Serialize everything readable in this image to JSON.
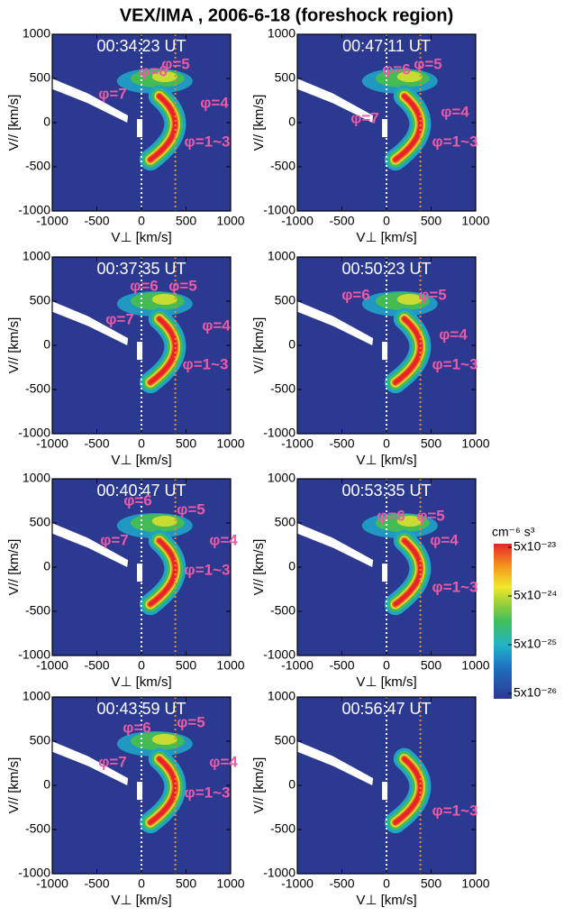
{
  "title": "VEX/IMA ,  2006-6-18 (foreshock region)",
  "chart_data": [
    {
      "type": "heatmap",
      "title": "00:34:23 UT",
      "xlabel": "V⊥ [km/s]",
      "ylabel": "V// [km/s]",
      "xlim": [
        -1000,
        1000
      ],
      "ylim": [
        -1000,
        1000
      ],
      "xticks": [
        -1000,
        -500,
        0,
        500,
        1000
      ],
      "yticks": [
        1000,
        500,
        0,
        -500,
        -1000
      ],
      "annotations": [
        "φ=6",
        "φ=5",
        "φ=7",
        "φ=4",
        "φ=1~3"
      ]
    },
    {
      "type": "heatmap",
      "title": "00:47:11 UT",
      "xlabel": "V⊥ [km/s]",
      "ylabel": "V// [km/s]",
      "xlim": [
        -1000,
        1000
      ],
      "ylim": [
        -1000,
        1000
      ],
      "xticks": [
        -1000,
        -500,
        0,
        500,
        1000
      ],
      "yticks": [
        1000,
        500,
        0,
        -500,
        -1000
      ],
      "annotations": [
        "φ=6",
        "φ=5",
        "φ=7",
        "φ=4",
        "φ=1~3"
      ]
    },
    {
      "type": "heatmap",
      "title": "00:37:35 UT",
      "xlabel": "V⊥ [km/s]",
      "ylabel": "V// [km/s]",
      "xlim": [
        -1000,
        1000
      ],
      "ylim": [
        -1000,
        1000
      ],
      "xticks": [
        -1000,
        -500,
        0,
        500,
        1000
      ],
      "yticks": [
        1000,
        500,
        0,
        -500,
        -1000
      ],
      "annotations": [
        "φ=6",
        "φ=5",
        "φ=7",
        "φ=4",
        "φ=1~3"
      ]
    },
    {
      "type": "heatmap",
      "title": "00:50:23 UT",
      "xlabel": "V⊥ [km/s]",
      "ylabel": "V// [km/s]",
      "xlim": [
        -1000,
        1000
      ],
      "ylim": [
        -1000,
        1000
      ],
      "xticks": [
        -1000,
        -500,
        0,
        500,
        1000
      ],
      "yticks": [
        1000,
        500,
        0,
        -500,
        -1000
      ],
      "annotations": [
        "φ=6",
        "φ=5",
        "φ=4",
        "φ=1~3"
      ]
    },
    {
      "type": "heatmap",
      "title": "00:40:47 UT",
      "xlabel": "V⊥ [km/s]",
      "ylabel": "V// [km/s]",
      "xlim": [
        -1000,
        1000
      ],
      "ylim": [
        -1000,
        1000
      ],
      "xticks": [
        -1000,
        -500,
        0,
        500,
        1000
      ],
      "yticks": [
        1000,
        500,
        0,
        -500,
        -1000
      ],
      "annotations": [
        "φ=6",
        "φ=5",
        "φ=7",
        "φ=4",
        "φ=1~3"
      ]
    },
    {
      "type": "heatmap",
      "title": "00:53:35 UT",
      "xlabel": "V⊥ [km/s]",
      "ylabel": "V// [km/s]",
      "xlim": [
        -1000,
        1000
      ],
      "ylim": [
        -1000,
        1000
      ],
      "xticks": [
        -1000,
        -500,
        0,
        500,
        1000
      ],
      "yticks": [
        1000,
        500,
        0,
        -500,
        -1000
      ],
      "annotations": [
        "φ=6",
        "φ=5",
        "φ=4",
        "φ=1~3"
      ]
    },
    {
      "type": "heatmap",
      "title": "00:43:59 UT",
      "xlabel": "V⊥ [km/s]",
      "ylabel": "V// [km/s]",
      "xlim": [
        -1000,
        1000
      ],
      "ylim": [
        -1000,
        1000
      ],
      "xticks": [
        -1000,
        -500,
        0,
        500,
        1000
      ],
      "yticks": [
        1000,
        500,
        0,
        -500,
        -1000
      ],
      "annotations": [
        "φ=6",
        "φ=5",
        "φ=7",
        "φ=4",
        "φ=1~3"
      ]
    },
    {
      "type": "heatmap",
      "title": "00:56:47 UT",
      "xlabel": "V⊥ [km/s]",
      "ylabel": "V// [km/s]",
      "xlim": [
        -1000,
        1000
      ],
      "ylim": [
        -1000,
        1000
      ],
      "xticks": [
        -1000,
        -500,
        0,
        500,
        1000
      ],
      "yticks": [
        1000,
        500,
        0,
        -500,
        -1000
      ],
      "annotations": [
        "φ=1~3"
      ]
    }
  ],
  "colorbar": {
    "label": "cm⁻⁶ s³",
    "log": true,
    "lim": [
      5e-26,
      5e-23
    ],
    "ticks": [
      {
        "value": 5e-23,
        "label": "5x10⁻²³"
      },
      {
        "value": 5e-24,
        "label": "5x10⁻²⁴"
      },
      {
        "value": 5e-25,
        "label": "5x10⁻²⁵"
      },
      {
        "value": 5e-26,
        "label": "5x10⁻²⁶"
      }
    ]
  }
}
